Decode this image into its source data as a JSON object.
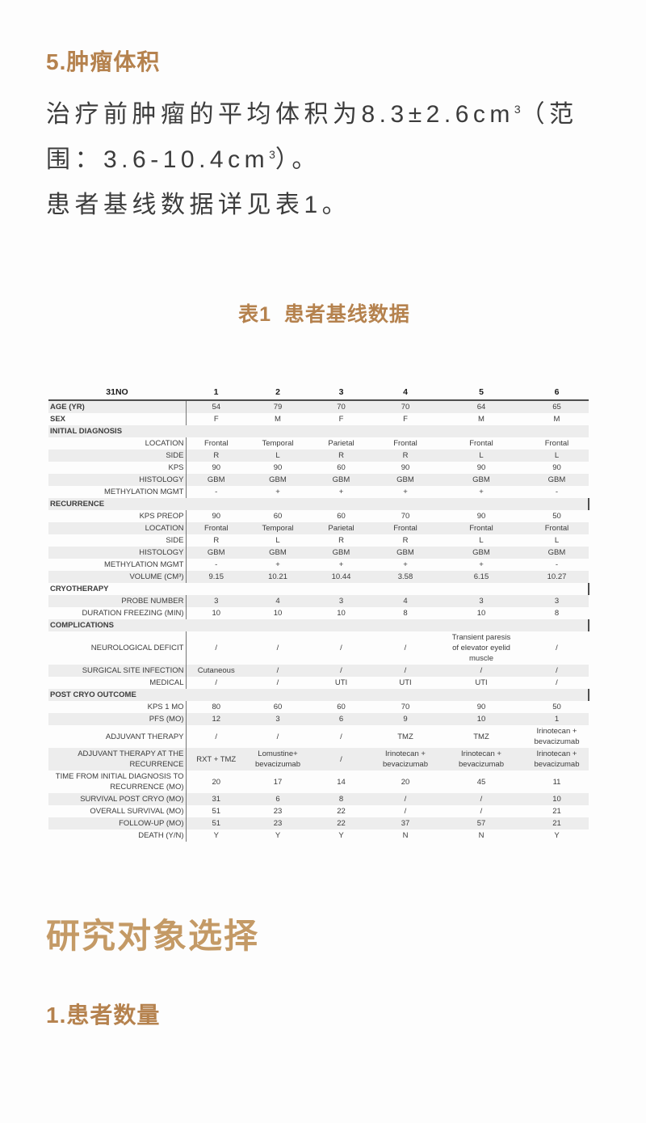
{
  "colors": {
    "accent_brown": "#b5824e",
    "heading_gold": "#c49a66",
    "stripe_gray": "#ededed",
    "body_text": "#3c3c3c"
  },
  "article": {
    "section5_title": "5.肿瘤体积",
    "intro_line1_text": "治疗前肿瘤的平均体积为8.3±2.6cm",
    "intro_line1_sup": "3",
    "intro_line1_tail": "（范",
    "intro_line2_text": "围：3.6-10.4cm",
    "intro_line2_sup": "3",
    "intro_line2_tail": "）。",
    "para2": "患者基线数据详见表1。",
    "table_caption": "表1  患者基线数据",
    "section_heading": "研究对象选择",
    "subsection_title": "1.患者数量"
  },
  "table": {
    "header": [
      "31NO",
      "1",
      "2",
      "3",
      "4",
      "5",
      "6"
    ],
    "rows": [
      {
        "type": "top",
        "label": "AGE (YR)",
        "values": [
          "54",
          "79",
          "70",
          "70",
          "64",
          "65"
        ]
      },
      {
        "type": "top",
        "label": "SEX",
        "values": [
          "F",
          "M",
          "F",
          "F",
          "M",
          "M"
        ]
      },
      {
        "type": "section",
        "label": "INITIAL DIAGNOSIS",
        "tick": false
      },
      {
        "type": "sub",
        "label": "LOCATION",
        "values": [
          "Frontal",
          "Temporal",
          "Parietal",
          "Frontal",
          "Frontal",
          "Frontal"
        ]
      },
      {
        "type": "sub",
        "label": "SIDE",
        "values": [
          "R",
          "L",
          "R",
          "R",
          "L",
          "L"
        ]
      },
      {
        "type": "sub",
        "label": "KPS",
        "values": [
          "90",
          "90",
          "60",
          "90",
          "90",
          "90"
        ]
      },
      {
        "type": "sub",
        "label": "HISTOLOGY",
        "values": [
          "GBM",
          "GBM",
          "GBM",
          "GBM",
          "GBM",
          "GBM"
        ]
      },
      {
        "type": "sub",
        "label": "METHYLATION MGMT",
        "values": [
          "-",
          "+",
          "+",
          "+",
          "+",
          "-"
        ]
      },
      {
        "type": "section",
        "label": "RECURRENCE",
        "tick": true
      },
      {
        "type": "sub",
        "label": "KPS PREOP",
        "values": [
          "90",
          "60",
          "60",
          "70",
          "90",
          "50"
        ]
      },
      {
        "type": "sub",
        "label": "LOCATION",
        "values": [
          "Frontal",
          "Temporal",
          "Parietal",
          "Frontal",
          "Frontal",
          "Frontal"
        ]
      },
      {
        "type": "sub",
        "label": "SIDE",
        "values": [
          "R",
          "L",
          "R",
          "R",
          "L",
          "L"
        ]
      },
      {
        "type": "sub",
        "label": "HISTOLOGY",
        "values": [
          "GBM",
          "GBM",
          "GBM",
          "GBM",
          "GBM",
          "GBM"
        ]
      },
      {
        "type": "sub",
        "label": "METHYLATION MGMT",
        "values": [
          "-",
          "+",
          "+",
          "+",
          "+",
          "-"
        ]
      },
      {
        "type": "sub",
        "label": "VOLUME (CM³)",
        "values": [
          "9.15",
          "10.21",
          "10.44",
          "3.58",
          "6.15",
          "10.27"
        ]
      },
      {
        "type": "section",
        "label": "CRYOTHERAPY",
        "tick": true
      },
      {
        "type": "sub",
        "label": "PROBE NUMBER",
        "values": [
          "3",
          "4",
          "3",
          "4",
          "3",
          "3"
        ]
      },
      {
        "type": "sub",
        "label": "DURATION FREEZING (MIN)",
        "values": [
          "10",
          "10",
          "10",
          "8",
          "10",
          "8"
        ]
      },
      {
        "type": "section",
        "label": "COMPLICATIONS",
        "tick": true
      },
      {
        "type": "sub",
        "label": "NEUROLOGICAL DEFICIT",
        "values": [
          "/",
          "/",
          "/",
          "/",
          "Transient paresis\nof elevator eyelid\nmuscle",
          "/"
        ]
      },
      {
        "type": "sub",
        "label": "SURGICAL SITE INFECTION",
        "values": [
          "Cutaneous",
          "/",
          "/",
          "/",
          "/",
          "/"
        ]
      },
      {
        "type": "sub",
        "label": "MEDICAL",
        "values": [
          "/",
          "/",
          "UTI",
          "UTI",
          "UTI",
          "/"
        ]
      },
      {
        "type": "section",
        "label": "POST CRYO OUTCOME",
        "tick": true
      },
      {
        "type": "sub",
        "label": "KPS 1 MO",
        "values": [
          "80",
          "60",
          "60",
          "70",
          "90",
          "50"
        ]
      },
      {
        "type": "sub",
        "label": "PFS (MO)",
        "values": [
          "12",
          "3",
          "6",
          "9",
          "10",
          "1"
        ]
      },
      {
        "type": "sub",
        "label": "ADJUVANT THERAPY",
        "values": [
          "/",
          "/",
          "/",
          "TMZ",
          "TMZ",
          "Irinotecan +\nbevacizumab"
        ]
      },
      {
        "type": "sub",
        "label": "ADJUVANT THERAPY AT THE RECURRENCE",
        "values": [
          "RXT + TMZ",
          "Lomustine+\nbevacizumab",
          "/",
          "Irinotecan +\nbevacizumab",
          "Irinotecan +\nbevacizumab",
          "Irinotecan +\nbevacizumab"
        ]
      },
      {
        "type": "sub",
        "label": "TIME FROM INITIAL DIAGNOSIS TO RECURRENCE (MO)",
        "values": [
          "20",
          "17",
          "14",
          "20",
          "45",
          "11"
        ]
      },
      {
        "type": "sub",
        "label": "SURVIVAL POST CRYO (MO)",
        "values": [
          "31",
          "6",
          "8",
          "/",
          "/",
          "10"
        ]
      },
      {
        "type": "sub",
        "label": "OVERALL SURVIVAL (MO)",
        "values": [
          "51",
          "23",
          "22",
          "/",
          "/",
          "21"
        ]
      },
      {
        "type": "sub",
        "label": "FOLLOW-UP (MO)",
        "values": [
          "51",
          "23",
          "22",
          "37",
          "57",
          "21"
        ]
      },
      {
        "type": "sub",
        "label": "DEATH (Y/N)",
        "values": [
          "Y",
          "Y",
          "Y",
          "N",
          "N",
          "Y"
        ]
      }
    ]
  }
}
